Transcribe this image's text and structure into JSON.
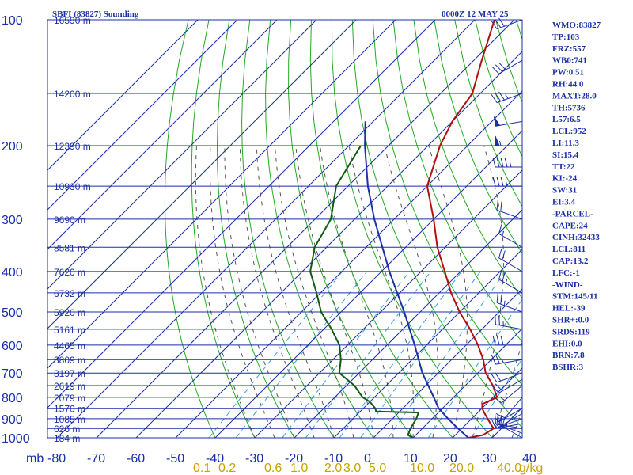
{
  "title": "SBFI (83827) Sounding",
  "timestamp": "0000Z 12 MAY 25",
  "indices": [
    "WMO:83827",
    "TP:103",
    "FRZ:557",
    "WB0:741",
    "PW:0.51",
    "RH:44.0",
    "MAXT:28.0",
    "TH:5736",
    "L57:6.5",
    "LCL:952",
    "LI:11.3",
    "SI:15.4",
    "TT:22",
    "KI:-24",
    "SW:31",
    "EI:3.4",
    "-PARCEL-",
    "CAPE:24",
    "CINH:32433",
    "LCL:811",
    "CAP:13.2",
    "LFC:-1",
    "-WIND-",
    "STM:145/11",
    "HEL:-39",
    "SHR+:0.0",
    "SRDS:119",
    "EHI:0.0",
    "BRN:7.8",
    "BSHR:3"
  ],
  "pressure_unit_label": "mb",
  "mixing_ratio_labels": [
    "0.1",
    "0.2",
    "0.6",
    "1.0",
    "2.0",
    "3.0",
    "5.0",
    "10.0",
    "20.0",
    "40.0",
    "g/kg"
  ],
  "colors": {
    "grid": "#1a2fa8",
    "dry_adiabat": "#22aa22",
    "moist_adiabat": "#555555",
    "mixing_ratio": "#3a9fd6",
    "temperature": "#b01010",
    "dewpoint": "#145a14",
    "parcel": "#1a2fa8",
    "wind": "#1a2fa8",
    "labels": "#1a2fa8",
    "mixing_labels": "#c8a200"
  },
  "chart_data": {
    "type": "skew-t",
    "x_axis": {
      "ticks": [
        -80,
        -70,
        -60,
        -50,
        -40,
        -30,
        -20,
        -10,
        0,
        10,
        20,
        30,
        40
      ],
      "unit": "°C",
      "range": [
        -80,
        40
      ]
    },
    "y_axis": {
      "ticks": [
        100,
        200,
        300,
        400,
        500,
        600,
        700,
        800,
        900,
        1000
      ],
      "unit": "mb",
      "range": [
        100,
        1000
      ],
      "scale": "log"
    },
    "height_levels": [
      {
        "p": 100,
        "label": "16590 m"
      },
      {
        "p": 150,
        "label": "14200 m"
      },
      {
        "p": 200,
        "label": "12390 m"
      },
      {
        "p": 250,
        "label": "10930 m"
      },
      {
        "p": 300,
        "label": "9690 m"
      },
      {
        "p": 350,
        "label": "8581 m"
      },
      {
        "p": 400,
        "label": "7620 m"
      },
      {
        "p": 450,
        "label": "6732 m"
      },
      {
        "p": 500,
        "label": "5920 m"
      },
      {
        "p": 550,
        "label": "5161 m"
      },
      {
        "p": 600,
        "label": "4465 m"
      },
      {
        "p": 650,
        "label": "3809 m"
      },
      {
        "p": 700,
        "label": "3197 m"
      },
      {
        "p": 750,
        "label": "2619 m"
      },
      {
        "p": 800,
        "label": "2079 m"
      },
      {
        "p": 850,
        "label": "1570 m"
      },
      {
        "p": 900,
        "label": "1085 m"
      },
      {
        "p": 950,
        "label": "626 m"
      },
      {
        "p": 1000,
        "label": "184 m"
      }
    ],
    "temperature": [
      {
        "p": 1000,
        "t": 24
      },
      {
        "p": 985,
        "t": 27
      },
      {
        "p": 950,
        "t": 28
      },
      {
        "p": 925,
        "t": 26
      },
      {
        "p": 900,
        "t": 24
      },
      {
        "p": 875,
        "t": 22
      },
      {
        "p": 850,
        "t": 20
      },
      {
        "p": 830,
        "t": 19
      },
      {
        "p": 800,
        "t": 21
      },
      {
        "p": 750,
        "t": 17
      },
      {
        "p": 700,
        "t": 12
      },
      {
        "p": 650,
        "t": 8
      },
      {
        "p": 600,
        "t": 3
      },
      {
        "p": 550,
        "t": -3
      },
      {
        "p": 500,
        "t": -10
      },
      {
        "p": 450,
        "t": -17
      },
      {
        "p": 400,
        "t": -24
      },
      {
        "p": 350,
        "t": -32
      },
      {
        "p": 300,
        "t": -40
      },
      {
        "p": 250,
        "t": -50
      },
      {
        "p": 200,
        "t": -57
      },
      {
        "p": 175,
        "t": -60
      },
      {
        "p": 150,
        "t": -62
      },
      {
        "p": 125,
        "t": -68
      },
      {
        "p": 100,
        "t": -75
      }
    ],
    "dewpoint": [
      {
        "p": 1000,
        "t": 10
      },
      {
        "p": 985,
        "t": 8
      },
      {
        "p": 950,
        "t": 7
      },
      {
        "p": 900,
        "t": 6
      },
      {
        "p": 870,
        "t": 5
      },
      {
        "p": 865,
        "t": -6
      },
      {
        "p": 850,
        "t": -7
      },
      {
        "p": 820,
        "t": -10
      },
      {
        "p": 800,
        "t": -13
      },
      {
        "p": 750,
        "t": -18
      },
      {
        "p": 700,
        "t": -25
      },
      {
        "p": 650,
        "t": -28
      },
      {
        "p": 600,
        "t": -32
      },
      {
        "p": 550,
        "t": -38
      },
      {
        "p": 500,
        "t": -45
      },
      {
        "p": 450,
        "t": -51
      },
      {
        "p": 400,
        "t": -58
      },
      {
        "p": 350,
        "t": -63
      },
      {
        "p": 300,
        "t": -66
      },
      {
        "p": 250,
        "t": -73
      },
      {
        "p": 200,
        "t": -77
      }
    ],
    "parcel": [
      {
        "p": 1000,
        "t": 24
      },
      {
        "p": 950,
        "t": 19
      },
      {
        "p": 900,
        "t": 14
      },
      {
        "p": 850,
        "t": 9
      },
      {
        "p": 800,
        "t": 5
      },
      {
        "p": 700,
        "t": -4
      },
      {
        "p": 600,
        "t": -13
      },
      {
        "p": 500,
        "t": -24
      },
      {
        "p": 400,
        "t": -38
      },
      {
        "p": 300,
        "t": -55
      },
      {
        "p": 250,
        "t": -65
      },
      {
        "p": 200,
        "t": -76
      },
      {
        "p": 175,
        "t": -82
      }
    ],
    "mixing_ratio_values": [
      0.1,
      0.2,
      0.6,
      1,
      2,
      3,
      5,
      10,
      20,
      40
    ],
    "wind_barbs": [
      {
        "p": 1000,
        "dir": 300,
        "spd": 25
      },
      {
        "p": 975,
        "dir": 290,
        "spd": 20
      },
      {
        "p": 950,
        "dir": 280,
        "spd": 15
      },
      {
        "p": 925,
        "dir": 260,
        "spd": 10
      },
      {
        "p": 900,
        "dir": 250,
        "spd": 5
      },
      {
        "p": 875,
        "dir": 240,
        "spd": 5
      },
      {
        "p": 850,
        "dir": 240,
        "spd": 5
      },
      {
        "p": 800,
        "dir": 220,
        "spd": 10
      },
      {
        "p": 750,
        "dir": 230,
        "spd": 15
      },
      {
        "p": 725,
        "dir": 240,
        "spd": 20
      },
      {
        "p": 700,
        "dir": 250,
        "spd": 20
      },
      {
        "p": 650,
        "dir": 260,
        "spd": 25
      },
      {
        "p": 600,
        "dir": 270,
        "spd": 30
      },
      {
        "p": 550,
        "dir": 280,
        "spd": 25
      },
      {
        "p": 500,
        "dir": 290,
        "spd": 25
      },
      {
        "p": 450,
        "dir": 300,
        "spd": 25
      },
      {
        "p": 400,
        "dir": 300,
        "spd": 20
      },
      {
        "p": 350,
        "dir": 300,
        "spd": 15
      },
      {
        "p": 300,
        "dir": 290,
        "spd": 20
      },
      {
        "p": 250,
        "dir": 270,
        "spd": 35
      },
      {
        "p": 225,
        "dir": 270,
        "spd": 45
      },
      {
        "p": 200,
        "dir": 270,
        "spd": 55
      },
      {
        "p": 175,
        "dir": 260,
        "spd": 50
      },
      {
        "p": 150,
        "dir": 250,
        "spd": 35
      },
      {
        "p": 125,
        "dir": 240,
        "spd": 30
      },
      {
        "p": 100,
        "dir": 250,
        "spd": 30
      }
    ]
  }
}
